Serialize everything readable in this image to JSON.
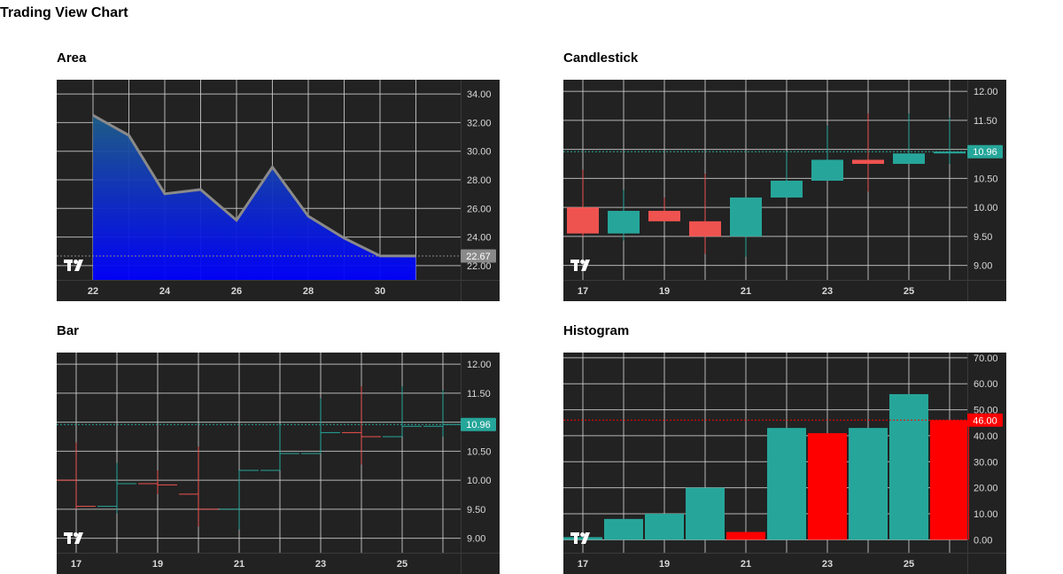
{
  "page": {
    "title": "Trading View Chart"
  },
  "colors": {
    "background": "#222222",
    "grid": "#cfcfcf",
    "up": "#26a69a",
    "down": "#ef5350",
    "hist_down": "#ff0000",
    "area_top": "#1e5f8a",
    "area_bottom": "#0000ff",
    "area_line": "#8a8a8a",
    "axis_text": "#d9d9d9"
  },
  "logo": {
    "text": "TV"
  },
  "chart_data": [
    {
      "id": "area",
      "type": "area",
      "title": "Area",
      "x": [
        22,
        23,
        24,
        25,
        26,
        27,
        28,
        29,
        30,
        31
      ],
      "values": [
        32.51,
        31.11,
        27.02,
        27.32,
        25.17,
        28.89,
        25.46,
        23.92,
        22.68,
        22.67
      ],
      "xticks": [
        "22",
        "24",
        "26",
        "28",
        "30"
      ],
      "yticks": [
        "34.00",
        "32.00",
        "30.00",
        "28.00",
        "26.00",
        "24.00",
        "22.00"
      ],
      "ylim": [
        21.0,
        35.0
      ],
      "last_value_label": "22.67"
    },
    {
      "id": "candlestick",
      "type": "candlestick",
      "title": "Candlestick",
      "x": [
        17,
        18,
        19,
        20,
        21,
        22,
        23,
        24,
        25,
        26
      ],
      "ohlc": [
        {
          "open": 10.0,
          "high": 10.65,
          "low": 9.5,
          "close": 9.55
        },
        {
          "open": 9.55,
          "high": 10.3,
          "low": 9.43,
          "close": 9.94
        },
        {
          "open": 9.94,
          "high": 10.17,
          "low": 9.76,
          "close": 9.76
        },
        {
          "open": 9.76,
          "high": 10.58,
          "low": 9.2,
          "close": 9.5
        },
        {
          "open": 9.5,
          "high": 10.17,
          "low": 9.15,
          "close": 10.17
        },
        {
          "open": 10.17,
          "high": 10.96,
          "low": 10.17,
          "close": 10.46
        },
        {
          "open": 10.46,
          "high": 11.41,
          "low": 10.46,
          "close": 10.82
        },
        {
          "open": 10.82,
          "high": 11.62,
          "low": 10.27,
          "close": 10.75
        },
        {
          "open": 10.75,
          "high": 11.62,
          "low": 10.75,
          "close": 10.93
        },
        {
          "open": 10.93,
          "high": 11.55,
          "low": 10.75,
          "close": 10.96
        }
      ],
      "xticks": [
        "17",
        "19",
        "21",
        "23",
        "25"
      ],
      "yticks": [
        "12.00",
        "11.50",
        "11.00",
        "10.50",
        "10.00",
        "9.50",
        "9.00"
      ],
      "ylim": [
        8.75,
        12.2
      ],
      "last_value_label": "10.96"
    },
    {
      "id": "bar",
      "type": "ohlc-bar",
      "title": "Bar",
      "x": [
        17,
        18,
        19,
        20,
        21,
        22,
        23,
        24,
        25,
        26
      ],
      "ohlc": [
        {
          "open": 10.0,
          "high": 10.65,
          "low": 9.5,
          "close": 9.55
        },
        {
          "open": 9.55,
          "high": 10.3,
          "low": 9.43,
          "close": 9.94
        },
        {
          "open": 9.94,
          "high": 10.17,
          "low": 9.76,
          "close": 9.92
        },
        {
          "open": 9.76,
          "high": 10.58,
          "low": 9.2,
          "close": 9.5
        },
        {
          "open": 9.5,
          "high": 10.17,
          "low": 9.15,
          "close": 10.17
        },
        {
          "open": 10.17,
          "high": 10.96,
          "low": 10.17,
          "close": 10.46
        },
        {
          "open": 10.46,
          "high": 11.41,
          "low": 10.46,
          "close": 10.82
        },
        {
          "open": 10.82,
          "high": 11.62,
          "low": 10.27,
          "close": 10.75
        },
        {
          "open": 10.75,
          "high": 11.62,
          "low": 10.75,
          "close": 10.93
        },
        {
          "open": 10.93,
          "high": 11.55,
          "low": 10.75,
          "close": 10.96
        }
      ],
      "xticks": [
        "17",
        "19",
        "21",
        "23",
        "25"
      ],
      "yticks": [
        "12.00",
        "11.50",
        "11.00",
        "10.50",
        "10.00",
        "9.50",
        "9.00"
      ],
      "ylim": [
        8.75,
        12.2
      ],
      "last_value_label": "10.96"
    },
    {
      "id": "histogram",
      "type": "histogram",
      "title": "Histogram",
      "x": [
        17,
        18,
        19,
        20,
        21,
        22,
        23,
        24,
        25,
        26
      ],
      "values": [
        1,
        8,
        10,
        20,
        3,
        43,
        41,
        43,
        56,
        46
      ],
      "bar_colors": [
        "up",
        "up",
        "up",
        "up",
        "down",
        "up",
        "down",
        "up",
        "up",
        "down"
      ],
      "xticks": [
        "17",
        "19",
        "21",
        "23",
        "25"
      ],
      "yticks": [
        "70.00",
        "60.00",
        "50.00",
        "40.00",
        "30.00",
        "20.00",
        "10.00",
        "0.00"
      ],
      "ylim": [
        -5,
        72
      ],
      "last_value_label": "46.00"
    }
  ]
}
